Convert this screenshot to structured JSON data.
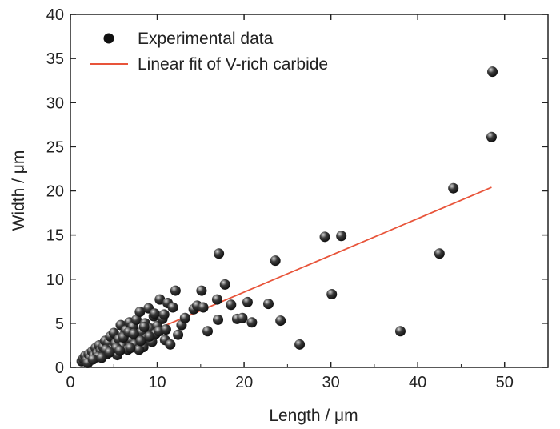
{
  "chart_data": {
    "type": "scatter",
    "title": "",
    "xlabel": "Length / μm",
    "ylabel": "Width / μm",
    "xlim": [
      0,
      55
    ],
    "ylim": [
      0,
      40
    ],
    "xticks": [
      0,
      10,
      20,
      30,
      40,
      50
    ],
    "yticks": [
      0,
      5,
      10,
      15,
      20,
      25,
      30,
      35,
      40
    ],
    "grid": false,
    "legend_position": "top-left",
    "colors": {
      "points": "#111111",
      "fit_line": "#e8543a"
    },
    "series": [
      {
        "name": "Experimental data",
        "kind": "points",
        "points": [
          [
            1.3,
            0.7
          ],
          [
            1.5,
            1.0
          ],
          [
            1.7,
            1.3
          ],
          [
            1.9,
            0.8
          ],
          [
            2.1,
            1.5
          ],
          [
            2.3,
            1.1
          ],
          [
            2.5,
            1.8
          ],
          [
            2.7,
            1.3
          ],
          [
            2.9,
            2.2
          ],
          [
            3.1,
            1.6
          ],
          [
            3.3,
            2.5
          ],
          [
            3.5,
            1.9
          ],
          [
            3.8,
            2.3
          ],
          [
            4.0,
            3.0
          ],
          [
            4.2,
            1.5
          ],
          [
            4.4,
            2.8
          ],
          [
            4.6,
            3.5
          ],
          [
            4.8,
            2.1
          ],
          [
            5.0,
            3.9
          ],
          [
            5.2,
            2.7
          ],
          [
            5.4,
            1.4
          ],
          [
            5.6,
            3.2
          ],
          [
            5.8,
            4.8
          ],
          [
            6.0,
            2.4
          ],
          [
            6.2,
            3.7
          ],
          [
            6.4,
            4.2
          ],
          [
            6.6,
            2.0
          ],
          [
            6.8,
            5.1
          ],
          [
            7.0,
            3.1
          ],
          [
            7.2,
            4.6
          ],
          [
            7.4,
            2.6
          ],
          [
            7.6,
            5.4
          ],
          [
            7.8,
            3.6
          ],
          [
            8.0,
            6.3
          ],
          [
            8.2,
            4.0
          ],
          [
            8.4,
            2.3
          ],
          [
            8.6,
            5.0
          ],
          [
            8.8,
            3.3
          ],
          [
            9.0,
            6.7
          ],
          [
            9.2,
            4.4
          ],
          [
            9.4,
            2.9
          ],
          [
            9.6,
            5.8
          ],
          [
            9.8,
            3.8
          ],
          [
            10.0,
            4.7
          ],
          [
            10.3,
            7.7
          ],
          [
            10.6,
            5.5
          ],
          [
            10.9,
            3.1
          ],
          [
            11.2,
            7.3
          ],
          [
            11.5,
            2.6
          ],
          [
            11.8,
            6.8
          ],
          [
            12.1,
            8.7
          ],
          [
            12.4,
            3.7
          ],
          [
            12.8,
            4.8
          ],
          [
            13.2,
            5.6
          ],
          [
            14.2,
            6.6
          ],
          [
            14.6,
            7.0
          ],
          [
            15.1,
            8.7
          ],
          [
            15.3,
            6.8
          ],
          [
            15.8,
            4.1
          ],
          [
            16.9,
            7.7
          ],
          [
            17.0,
            5.4
          ],
          [
            17.1,
            12.9
          ],
          [
            17.8,
            9.4
          ],
          [
            18.5,
            7.1
          ],
          [
            19.2,
            5.5
          ],
          [
            19.8,
            5.6
          ],
          [
            20.4,
            7.4
          ],
          [
            20.9,
            5.1
          ],
          [
            22.8,
            7.2
          ],
          [
            23.6,
            12.1
          ],
          [
            24.2,
            5.3
          ],
          [
            26.4,
            2.6
          ],
          [
            29.3,
            14.8
          ],
          [
            30.1,
            8.3
          ],
          [
            31.2,
            14.9
          ],
          [
            38.0,
            4.1
          ],
          [
            42.5,
            12.9
          ],
          [
            44.1,
            20.3
          ],
          [
            48.5,
            26.1
          ],
          [
            48.6,
            33.5
          ],
          [
            3.2,
            1.2
          ],
          [
            4.1,
            2.0
          ],
          [
            5.3,
            2.2
          ],
          [
            6.1,
            3.4
          ],
          [
            6.7,
            4.0
          ],
          [
            7.3,
            3.8
          ],
          [
            7.9,
            2.0
          ],
          [
            8.5,
            4.6
          ],
          [
            9.1,
            3.5
          ],
          [
            9.7,
            6.1
          ],
          [
            10.2,
            4.1
          ],
          [
            10.8,
            6.0
          ],
          [
            11.0,
            4.3
          ],
          [
            2.0,
            0.5
          ],
          [
            2.6,
            0.9
          ],
          [
            3.6,
            1.1
          ],
          [
            4.5,
            1.7
          ],
          [
            5.7,
            1.9
          ],
          [
            6.9,
            2.2
          ],
          [
            8.1,
            3.0
          ]
        ]
      },
      {
        "name": "Linear fit of V-rich carbide",
        "kind": "line",
        "x": [
          1.2,
          48.5
        ],
        "y": [
          0.7,
          20.4
        ]
      }
    ]
  }
}
